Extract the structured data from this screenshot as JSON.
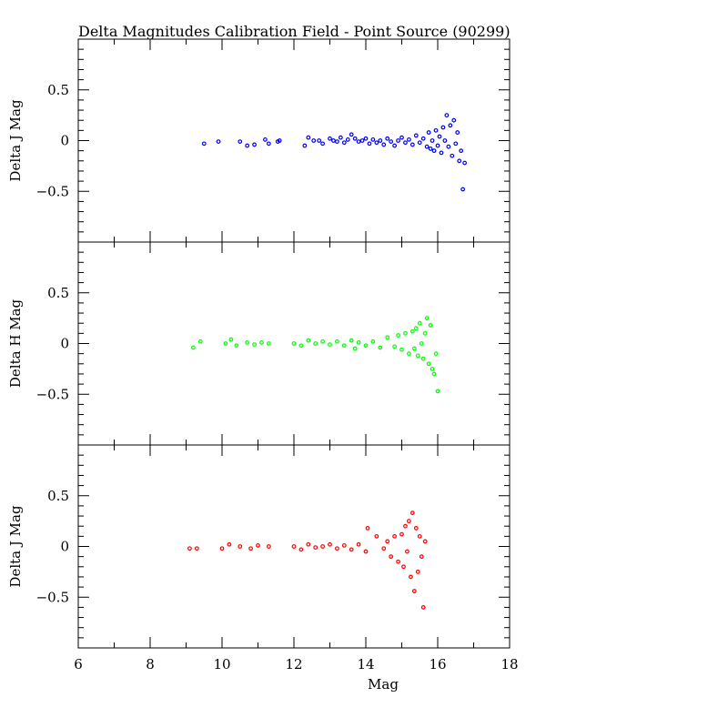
{
  "chart_data": {
    "type": "scatter",
    "title": "Delta Magnitudes Calibration Field - Point Source (90299)",
    "xlabel": "Mag",
    "xlim": [
      6,
      18
    ],
    "x_major_ticks": [
      6,
      8,
      10,
      12,
      14,
      16,
      18
    ],
    "panels": [
      {
        "ylabel": "Delta J Mag",
        "ylim": [
          -1,
          1
        ],
        "y_tick_labels": [
          "0.5",
          "0",
          "−0.5"
        ],
        "y_tick_values": [
          0.5,
          0,
          -0.5
        ],
        "color": "#0000ff",
        "points": [
          [
            9.5,
            -0.03
          ],
          [
            9.9,
            -0.01
          ],
          [
            10.5,
            -0.01
          ],
          [
            10.7,
            -0.05
          ],
          [
            10.9,
            -0.04
          ],
          [
            11.2,
            0.01
          ],
          [
            11.3,
            -0.03
          ],
          [
            11.55,
            -0.01
          ],
          [
            11.6,
            0.0
          ],
          [
            12.3,
            -0.05
          ],
          [
            12.4,
            0.03
          ],
          [
            12.55,
            0.0
          ],
          [
            12.7,
            0.0
          ],
          [
            12.8,
            -0.03
          ],
          [
            13.0,
            0.02
          ],
          [
            13.1,
            0.0
          ],
          [
            13.2,
            -0.01
          ],
          [
            13.3,
            0.03
          ],
          [
            13.4,
            -0.02
          ],
          [
            13.5,
            0.01
          ],
          [
            13.6,
            0.06
          ],
          [
            13.7,
            0.02
          ],
          [
            13.8,
            -0.01
          ],
          [
            13.9,
            0.0
          ],
          [
            14.0,
            0.02
          ],
          [
            14.1,
            -0.03
          ],
          [
            14.2,
            0.01
          ],
          [
            14.3,
            -0.02
          ],
          [
            14.4,
            0.0
          ],
          [
            14.5,
            -0.04
          ],
          [
            14.6,
            0.02
          ],
          [
            14.7,
            -0.01
          ],
          [
            14.8,
            -0.05
          ],
          [
            14.9,
            0.0
          ],
          [
            15.0,
            0.03
          ],
          [
            15.1,
            -0.02
          ],
          [
            15.2,
            0.01
          ],
          [
            15.3,
            -0.04
          ],
          [
            15.4,
            0.05
          ],
          [
            15.5,
            -0.02
          ],
          [
            15.6,
            0.02
          ],
          [
            15.7,
            -0.06
          ],
          [
            15.75,
            0.08
          ],
          [
            15.8,
            -0.08
          ],
          [
            15.85,
            0.0
          ],
          [
            15.9,
            -0.1
          ],
          [
            15.95,
            0.1
          ],
          [
            16.0,
            -0.05
          ],
          [
            16.05,
            0.04
          ],
          [
            16.1,
            -0.12
          ],
          [
            16.15,
            0.13
          ],
          [
            16.2,
            0.0
          ],
          [
            16.25,
            0.25
          ],
          [
            16.3,
            -0.06
          ],
          [
            16.35,
            0.15
          ],
          [
            16.4,
            -0.15
          ],
          [
            16.45,
            0.2
          ],
          [
            16.5,
            -0.03
          ],
          [
            16.55,
            0.08
          ],
          [
            16.6,
            -0.2
          ],
          [
            16.65,
            -0.1
          ],
          [
            16.7,
            -0.48
          ],
          [
            16.75,
            -0.22
          ]
        ]
      },
      {
        "ylabel": "Delta H Mag",
        "ylim": [
          -1,
          1
        ],
        "y_tick_labels": [
          "0.5",
          "0",
          "−0.5"
        ],
        "y_tick_values": [
          0.5,
          0,
          -0.5
        ],
        "color": "#00ff00",
        "points": [
          [
            9.2,
            -0.04
          ],
          [
            9.4,
            0.02
          ],
          [
            10.1,
            0.0
          ],
          [
            10.25,
            0.04
          ],
          [
            10.4,
            -0.02
          ],
          [
            10.7,
            0.01
          ],
          [
            10.9,
            -0.01
          ],
          [
            11.1,
            0.01
          ],
          [
            11.3,
            0.0
          ],
          [
            12.0,
            0.0
          ],
          [
            12.2,
            -0.02
          ],
          [
            12.4,
            0.03
          ],
          [
            12.6,
            0.0
          ],
          [
            12.8,
            0.02
          ],
          [
            13.0,
            -0.01
          ],
          [
            13.2,
            0.02
          ],
          [
            13.4,
            -0.02
          ],
          [
            13.6,
            0.03
          ],
          [
            13.7,
            -0.05
          ],
          [
            13.8,
            0.01
          ],
          [
            14.0,
            -0.02
          ],
          [
            14.2,
            0.02
          ],
          [
            14.4,
            -0.04
          ],
          [
            14.6,
            0.06
          ],
          [
            14.8,
            -0.03
          ],
          [
            14.9,
            0.08
          ],
          [
            15.0,
            -0.06
          ],
          [
            15.1,
            0.1
          ],
          [
            15.2,
            -0.1
          ],
          [
            15.3,
            0.12
          ],
          [
            15.35,
            -0.05
          ],
          [
            15.4,
            0.15
          ],
          [
            15.45,
            -0.12
          ],
          [
            15.5,
            0.2
          ],
          [
            15.55,
            0.0
          ],
          [
            15.6,
            -0.15
          ],
          [
            15.65,
            0.1
          ],
          [
            15.7,
            0.25
          ],
          [
            15.75,
            -0.2
          ],
          [
            15.8,
            0.18
          ],
          [
            15.85,
            -0.25
          ],
          [
            15.9,
            -0.3
          ],
          [
            15.95,
            -0.1
          ],
          [
            16.0,
            -0.47
          ]
        ]
      },
      {
        "ylabel": "Delta J Mag",
        "ylim": [
          -1,
          1
        ],
        "y_tick_labels": [
          "0.5",
          "0",
          "−0.5"
        ],
        "y_tick_values": [
          0.5,
          0,
          -0.5
        ],
        "color": "#ff0000",
        "points": [
          [
            9.1,
            -0.02
          ],
          [
            9.3,
            -0.02
          ],
          [
            10.0,
            -0.02
          ],
          [
            10.2,
            0.02
          ],
          [
            10.5,
            0.0
          ],
          [
            10.8,
            -0.02
          ],
          [
            11.0,
            0.01
          ],
          [
            11.3,
            0.0
          ],
          [
            12.0,
            0.0
          ],
          [
            12.2,
            -0.03
          ],
          [
            12.4,
            0.02
          ],
          [
            12.6,
            -0.01
          ],
          [
            12.8,
            0.0
          ],
          [
            13.0,
            0.02
          ],
          [
            13.2,
            -0.02
          ],
          [
            13.4,
            0.01
          ],
          [
            13.6,
            -0.03
          ],
          [
            13.8,
            0.02
          ],
          [
            14.0,
            -0.05
          ],
          [
            14.05,
            0.18
          ],
          [
            14.3,
            0.1
          ],
          [
            14.5,
            -0.02
          ],
          [
            14.6,
            0.05
          ],
          [
            14.7,
            -0.1
          ],
          [
            14.8,
            0.1
          ],
          [
            14.9,
            -0.15
          ],
          [
            15.0,
            0.12
          ],
          [
            15.05,
            -0.2
          ],
          [
            15.1,
            0.2
          ],
          [
            15.15,
            -0.05
          ],
          [
            15.2,
            0.25
          ],
          [
            15.25,
            -0.3
          ],
          [
            15.3,
            0.33
          ],
          [
            15.35,
            -0.44
          ],
          [
            15.4,
            0.18
          ],
          [
            15.45,
            -0.25
          ],
          [
            15.5,
            0.1
          ],
          [
            15.55,
            -0.1
          ],
          [
            15.6,
            -0.6
          ],
          [
            15.65,
            0.05
          ]
        ]
      }
    ]
  }
}
